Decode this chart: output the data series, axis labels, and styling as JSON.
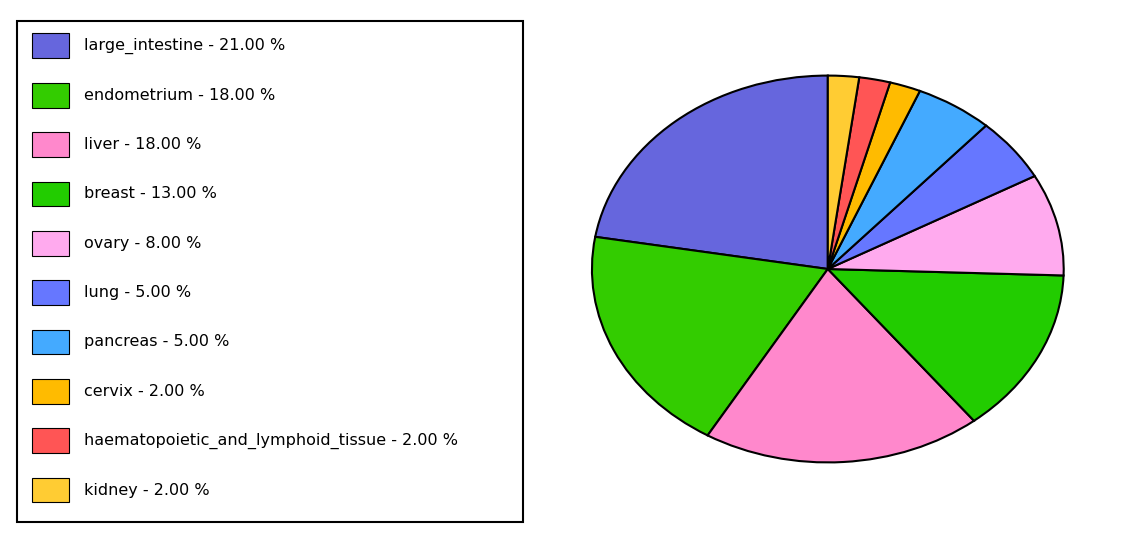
{
  "labels": [
    "large_intestine",
    "endometrium",
    "liver",
    "breast",
    "ovary",
    "lung",
    "pancreas",
    "cervix",
    "haematopoietic_and_lymphoid_tissue",
    "kidney"
  ],
  "values": [
    21,
    18,
    18,
    13,
    8,
    5,
    5,
    2,
    2,
    2
  ],
  "colors": [
    "#6666dd",
    "#33cc00",
    "#ff88cc",
    "#22cc00",
    "#ffaaee",
    "#6677ff",
    "#44aaff",
    "#ffbb00",
    "#ff5555",
    "#ffcc33"
  ],
  "legend_labels": [
    "large_intestine - 21.00 %",
    "endometrium - 18.00 %",
    "liver - 18.00 %",
    "breast - 13.00 %",
    "ovary - 8.00 %",
    "lung - 5.00 %",
    "pancreas - 5.00 %",
    "cervix - 2.00 %",
    "haematopoietic_and_lymphoid_tissue - 2.00 %",
    "kidney - 2.00 %"
  ],
  "figsize": [
    11.34,
    5.38
  ],
  "dpi": 100,
  "background_color": "#ffffff",
  "startangle": 90
}
